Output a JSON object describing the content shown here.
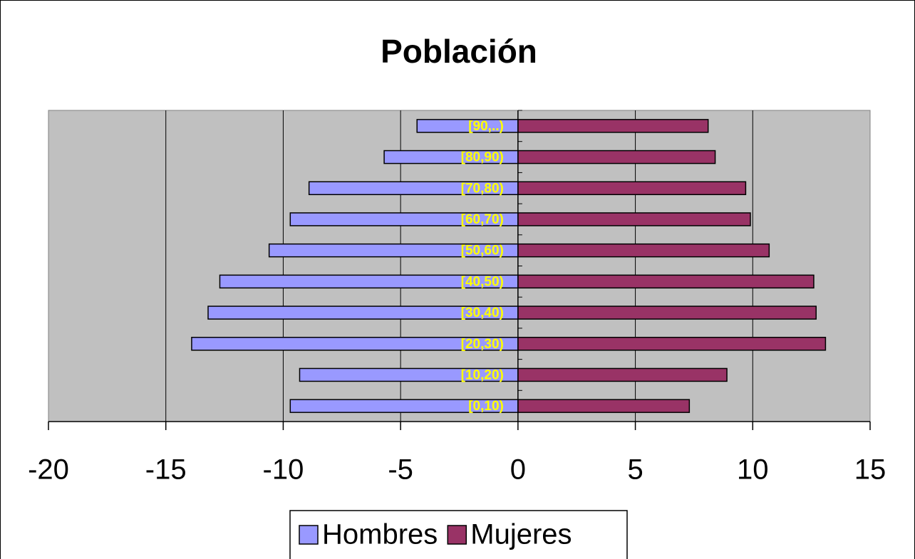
{
  "chart_data": {
    "type": "bar",
    "orientation": "horizontal",
    "title": "Población",
    "categories": [
      "[0,10)",
      "[10,20)",
      "[20,30)",
      "[30,40)",
      "[40,50)",
      "[50,60)",
      "[60,70)",
      "[70,80)",
      "[80,90)",
      "[90,..)"
    ],
    "series": [
      {
        "name": "Hombres",
        "color": "#9999ff",
        "values": [
          -9.7,
          -9.3,
          -13.9,
          -13.2,
          -12.7,
          -10.6,
          -9.7,
          -8.9,
          -5.7,
          -4.3
        ]
      },
      {
        "name": "Mujeres",
        "color": "#993366",
        "values": [
          7.3,
          8.9,
          13.1,
          12.7,
          12.6,
          10.7,
          9.9,
          9.7,
          8.4,
          8.1
        ]
      }
    ],
    "xlim": [
      -20,
      15
    ],
    "xticks": [
      -20,
      -15,
      -10,
      -5,
      0,
      5,
      10,
      15
    ],
    "grid": true,
    "legend": "bottom"
  }
}
